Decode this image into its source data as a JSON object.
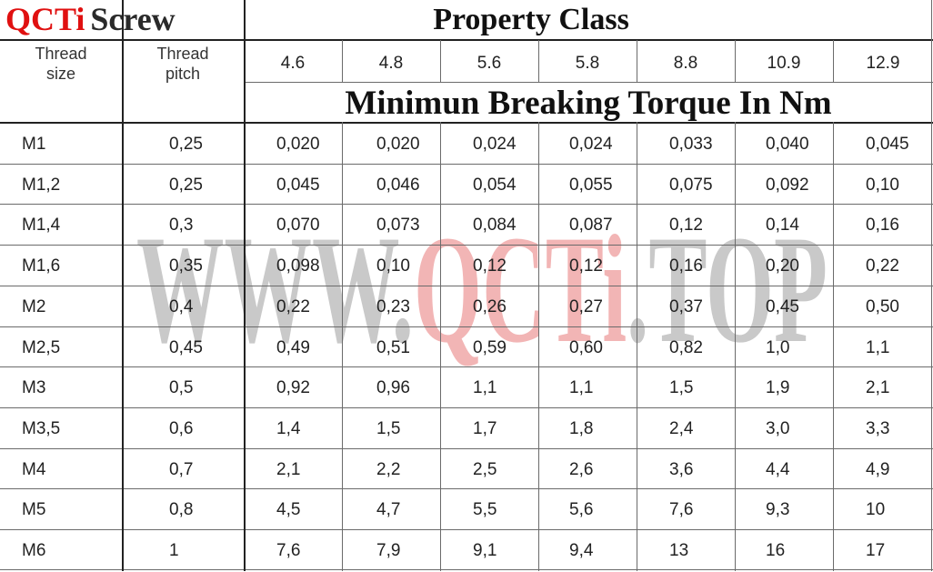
{
  "brand": {
    "part1": "QCTi",
    "part2": "Screw"
  },
  "header": {
    "property_class": "Property Class",
    "torque_title": "Minimun Breaking Torque In Nm",
    "thread_size_line1": "Thread",
    "thread_size_line2": "size",
    "thread_pitch_line1": "Thread",
    "thread_pitch_line2": "pitch"
  },
  "classes": [
    "4.6",
    "4.8",
    "5.6",
    "5.8",
    "8.8",
    "10.9",
    "12.9"
  ],
  "watermark": {
    "part1": "WWW.",
    "part2": "QCTi",
    "part3": ".TOP",
    "color_gray": "#c9c9c9",
    "color_red": "#f2b5b5"
  },
  "rows": [
    {
      "size": "M1",
      "pitch": "0,25",
      "values": [
        "0,020",
        "0,020",
        "0,024",
        "0,024",
        "0,033",
        "0,040",
        "0,045"
      ]
    },
    {
      "size": "M1,2",
      "pitch": "0,25",
      "values": [
        "0,045",
        "0,046",
        "0,054",
        "0,055",
        "0,075",
        "0,092",
        "0,10"
      ]
    },
    {
      "size": "M1,4",
      "pitch": "0,3",
      "values": [
        "0,070",
        "0,073",
        "0,084",
        "0,087",
        "0,12",
        "0,14",
        "0,16"
      ]
    },
    {
      "size": "M1,6",
      "pitch": "0,35",
      "values": [
        "0,098",
        "0,10",
        "0,12",
        "0,12",
        "0,16",
        "0,20",
        "0,22"
      ]
    },
    {
      "size": "M2",
      "pitch": "0,4",
      "values": [
        "0,22",
        "0,23",
        "0,26",
        "0,27",
        "0,37",
        "0,45",
        "0,50"
      ]
    },
    {
      "size": "M2,5",
      "pitch": "0,45",
      "values": [
        "0,49",
        "0,51",
        "0,59",
        "0,60",
        "0,82",
        "1,0",
        "1,1"
      ]
    },
    {
      "size": "M3",
      "pitch": "0,5",
      "values": [
        "0,92",
        "0,96",
        "1,1",
        "1,1",
        "1,5",
        "1,9",
        "2,1"
      ]
    },
    {
      "size": "M3,5",
      "pitch": "0,6",
      "values": [
        "1,4",
        "1,5",
        "1,7",
        "1,8",
        "2,4",
        "3,0",
        "3,3"
      ]
    },
    {
      "size": "M4",
      "pitch": "0,7",
      "values": [
        "2,1",
        "2,2",
        "2,5",
        "2,6",
        "3,6",
        "4,4",
        "4,9"
      ]
    },
    {
      "size": "M5",
      "pitch": "0,8",
      "values": [
        "4,5",
        "4,7",
        "5,5",
        "5,6",
        "7,6",
        "9,3",
        "10"
      ]
    },
    {
      "size": "M6",
      "pitch": "1",
      "values": [
        "7,6",
        "7,9",
        "9,1",
        "9,4",
        "13",
        "16",
        "17"
      ]
    }
  ]
}
